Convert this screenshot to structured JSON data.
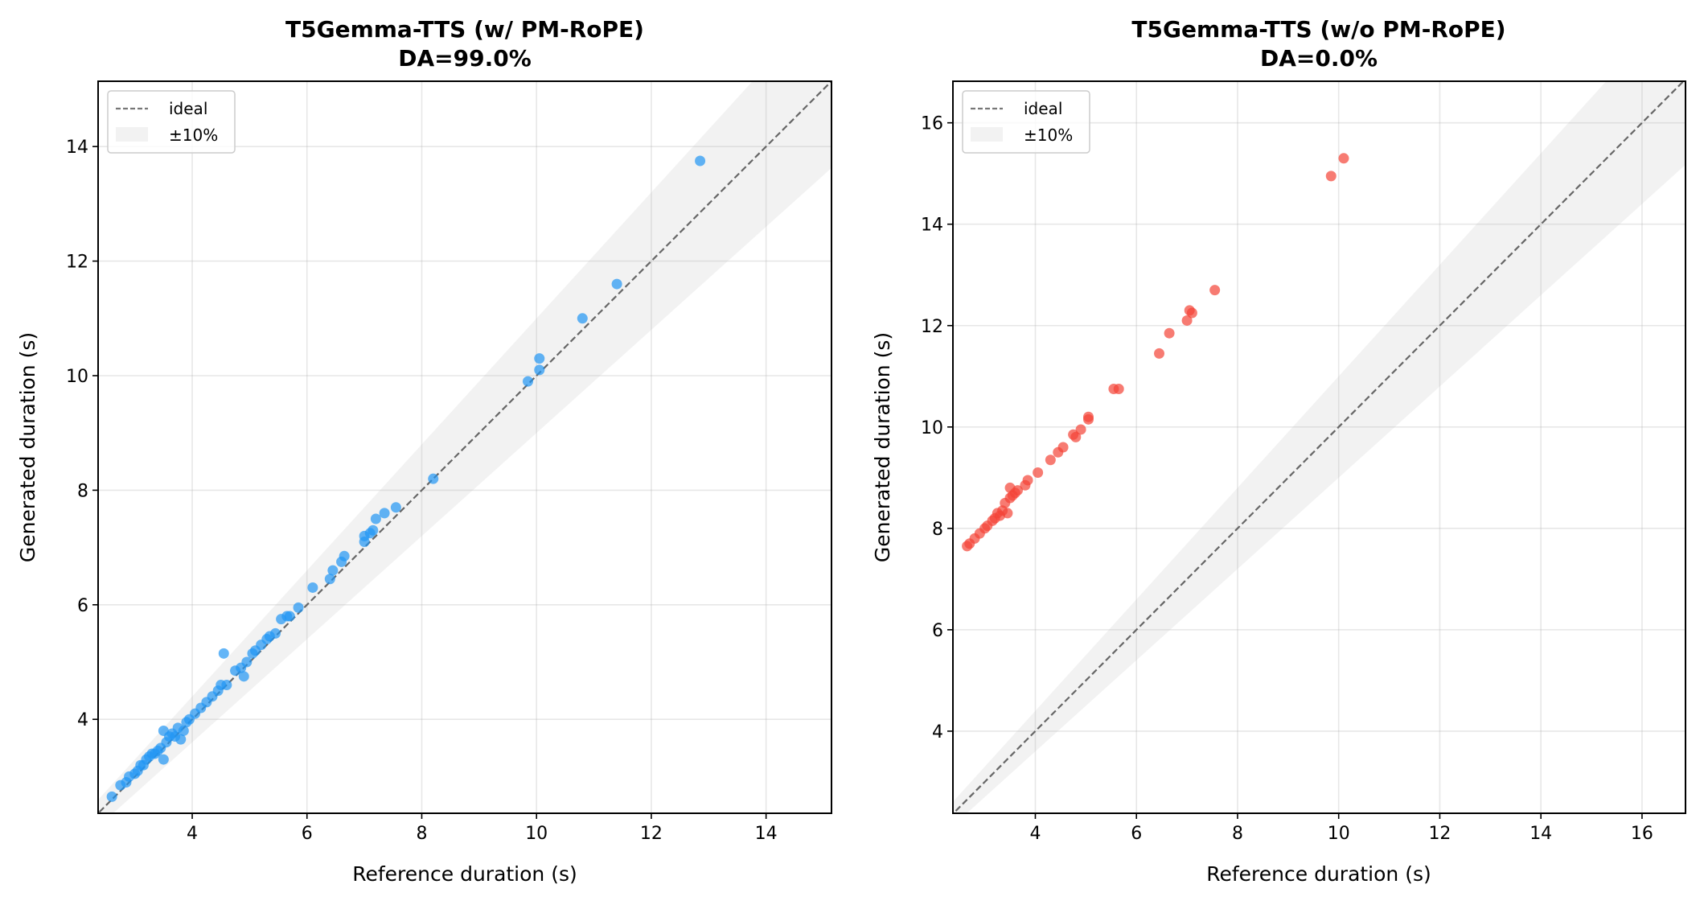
{
  "chart_data": [
    {
      "type": "scatter",
      "title": "T5Gemma-TTS (w/ PM-RoPE)",
      "subtitle": "DA=99.0%",
      "xlabel": "Reference duration (s)",
      "ylabel": "Generated duration (s)",
      "xlim": [
        2.36,
        15.14
      ],
      "ylim": [
        2.36,
        15.14
      ],
      "xticks": [
        4,
        6,
        8,
        10,
        12,
        14
      ],
      "yticks": [
        4,
        6,
        8,
        10,
        12,
        14
      ],
      "grid": true,
      "legend_position": "top-left",
      "legend": [
        {
          "label": "ideal",
          "kind": "dashed-line"
        },
        {
          "label": "±10%",
          "kind": "band"
        }
      ],
      "point_color": "#2196f3",
      "points": [
        [
          2.6,
          2.65
        ],
        [
          2.75,
          2.85
        ],
        [
          2.85,
          2.9
        ],
        [
          2.9,
          3.0
        ],
        [
          3.0,
          3.05
        ],
        [
          3.05,
          3.1
        ],
        [
          3.1,
          3.2
        ],
        [
          3.15,
          3.2
        ],
        [
          3.2,
          3.3
        ],
        [
          3.25,
          3.35
        ],
        [
          3.3,
          3.4
        ],
        [
          3.35,
          3.4
        ],
        [
          3.4,
          3.45
        ],
        [
          3.45,
          3.5
        ],
        [
          3.5,
          3.3
        ],
        [
          3.5,
          3.8
        ],
        [
          3.55,
          3.6
        ],
        [
          3.6,
          3.7
        ],
        [
          3.65,
          3.75
        ],
        [
          3.7,
          3.7
        ],
        [
          3.75,
          3.85
        ],
        [
          3.8,
          3.65
        ],
        [
          3.85,
          3.8
        ],
        [
          3.9,
          3.95
        ],
        [
          3.95,
          4.0
        ],
        [
          4.05,
          4.1
        ],
        [
          4.15,
          4.2
        ],
        [
          4.25,
          4.3
        ],
        [
          4.35,
          4.4
        ],
        [
          4.45,
          4.5
        ],
        [
          4.5,
          4.6
        ],
        [
          4.55,
          5.15
        ],
        [
          4.6,
          4.6
        ],
        [
          4.75,
          4.85
        ],
        [
          4.85,
          4.9
        ],
        [
          4.9,
          4.75
        ],
        [
          4.95,
          5.0
        ],
        [
          5.05,
          5.15
        ],
        [
          5.1,
          5.2
        ],
        [
          5.2,
          5.3
        ],
        [
          5.3,
          5.4
        ],
        [
          5.35,
          5.45
        ],
        [
          5.45,
          5.5
        ],
        [
          5.55,
          5.75
        ],
        [
          5.65,
          5.8
        ],
        [
          5.7,
          5.8
        ],
        [
          5.85,
          5.95
        ],
        [
          6.1,
          6.3
        ],
        [
          6.4,
          6.45
        ],
        [
          6.45,
          6.6
        ],
        [
          6.6,
          6.75
        ],
        [
          6.65,
          6.85
        ],
        [
          7.0,
          7.1
        ],
        [
          7.0,
          7.2
        ],
        [
          7.1,
          7.25
        ],
        [
          7.15,
          7.3
        ],
        [
          7.2,
          7.5
        ],
        [
          7.35,
          7.6
        ],
        [
          7.55,
          7.7
        ],
        [
          8.2,
          8.2
        ],
        [
          9.85,
          9.9
        ],
        [
          10.05,
          10.3
        ],
        [
          10.05,
          10.1
        ],
        [
          10.8,
          11.0
        ],
        [
          11.4,
          11.6
        ],
        [
          12.85,
          13.75
        ]
      ]
    },
    {
      "type": "scatter",
      "title": "T5Gemma-TTS (w/o PM-RoPE)",
      "subtitle": "DA=0.0%",
      "xlabel": "Reference duration (s)",
      "ylabel": "Generated duration (s)",
      "xlim": [
        2.37,
        16.86
      ],
      "ylim": [
        2.38,
        16.82
      ],
      "xticks": [
        4,
        6,
        8,
        10,
        12,
        14,
        16
      ],
      "yticks": [
        4,
        6,
        8,
        10,
        12,
        14,
        16
      ],
      "grid": true,
      "legend_position": "top-left",
      "legend": [
        {
          "label": "ideal",
          "kind": "dashed-line"
        },
        {
          "label": "±10%",
          "kind": "band"
        }
      ],
      "point_color": "#f44336",
      "points": [
        [
          2.65,
          7.65
        ],
        [
          2.7,
          7.7
        ],
        [
          2.8,
          7.8
        ],
        [
          2.9,
          7.9
        ],
        [
          3.0,
          8.0
        ],
        [
          3.05,
          8.05
        ],
        [
          3.15,
          8.15
        ],
        [
          3.2,
          8.2
        ],
        [
          3.25,
          8.3
        ],
        [
          3.3,
          8.25
        ],
        [
          3.35,
          8.35
        ],
        [
          3.4,
          8.5
        ],
        [
          3.45,
          8.3
        ],
        [
          3.5,
          8.6
        ],
        [
          3.5,
          8.8
        ],
        [
          3.55,
          8.65
        ],
        [
          3.6,
          8.7
        ],
        [
          3.65,
          8.75
        ],
        [
          3.8,
          8.85
        ],
        [
          3.85,
          8.95
        ],
        [
          4.05,
          9.1
        ],
        [
          4.3,
          9.35
        ],
        [
          4.45,
          9.5
        ],
        [
          4.55,
          9.6
        ],
        [
          4.75,
          9.85
        ],
        [
          4.8,
          9.8
        ],
        [
          4.9,
          9.95
        ],
        [
          5.05,
          10.15
        ],
        [
          5.05,
          10.2
        ],
        [
          5.55,
          10.75
        ],
        [
          5.65,
          10.75
        ],
        [
          6.45,
          11.45
        ],
        [
          6.65,
          11.85
        ],
        [
          7.0,
          12.1
        ],
        [
          7.05,
          12.3
        ],
        [
          7.1,
          12.25
        ],
        [
          7.55,
          12.7
        ],
        [
          9.85,
          14.95
        ],
        [
          10.1,
          15.3
        ]
      ]
    }
  ]
}
